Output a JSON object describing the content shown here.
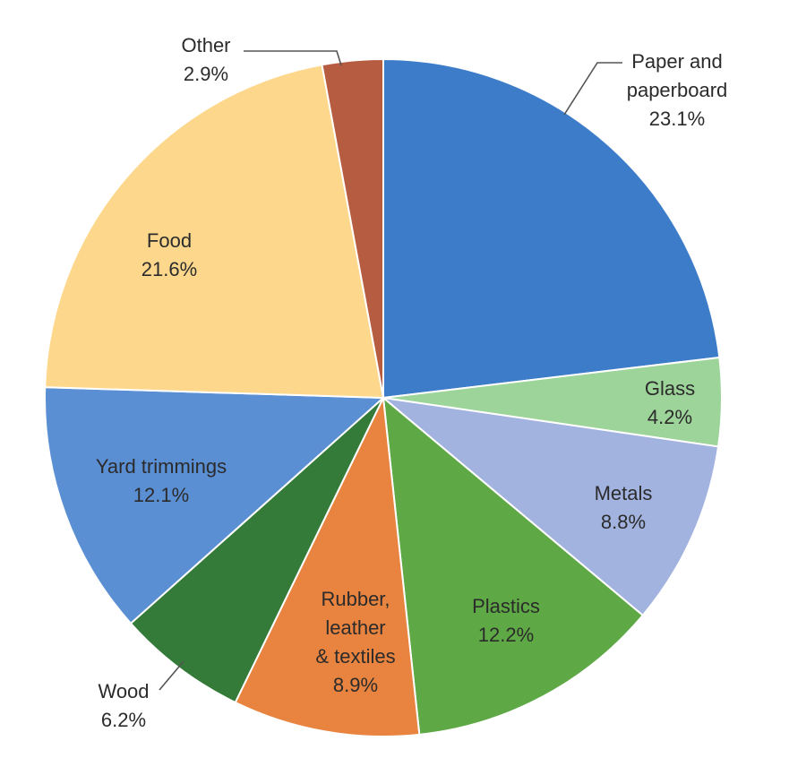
{
  "chart_data": {
    "type": "pie",
    "title": "",
    "start_angle_deg": 0,
    "direction": "clockwise",
    "legend": "none",
    "slices": [
      {
        "name": "Paper and paperboard",
        "label_lines": [
          "Paper and",
          "paperboard"
        ],
        "value_label": "23.1%",
        "value": 23.1,
        "color": "#3d7cc9"
      },
      {
        "name": "Glass",
        "label_lines": [
          "Glass"
        ],
        "value_label": "4.2%",
        "value": 4.2,
        "color": "#9dd49a"
      },
      {
        "name": "Metals",
        "label_lines": [
          "Metals"
        ],
        "value_label": "8.8%",
        "value": 8.8,
        "color": "#a3b3e0"
      },
      {
        "name": "Plastics",
        "label_lines": [
          "Plastics"
        ],
        "value_label": "12.2%",
        "value": 12.2,
        "color": "#5ea845"
      },
      {
        "name": "Rubber, leather & textiles",
        "label_lines": [
          "Rubber,",
          "leather",
          "& textiles"
        ],
        "value_label": "8.9%",
        "value": 8.9,
        "color": "#e8843f"
      },
      {
        "name": "Wood",
        "label_lines": [
          "Wood"
        ],
        "value_label": "6.2%",
        "value": 6.2,
        "color": "#347a38"
      },
      {
        "name": "Yard trimmings",
        "label_lines": [
          "Yard trimmings"
        ],
        "value_label": "12.1%",
        "value": 12.1,
        "color": "#5b8fd4"
      },
      {
        "name": "Food",
        "label_lines": [
          "Food"
        ],
        "value_label": "21.6%",
        "value": 21.6,
        "color": "#fdd88c"
      },
      {
        "name": "Other",
        "label_lines": [
          "Other"
        ],
        "value_label": "2.9%",
        "value": 2.9,
        "color": "#b65c40"
      }
    ]
  }
}
